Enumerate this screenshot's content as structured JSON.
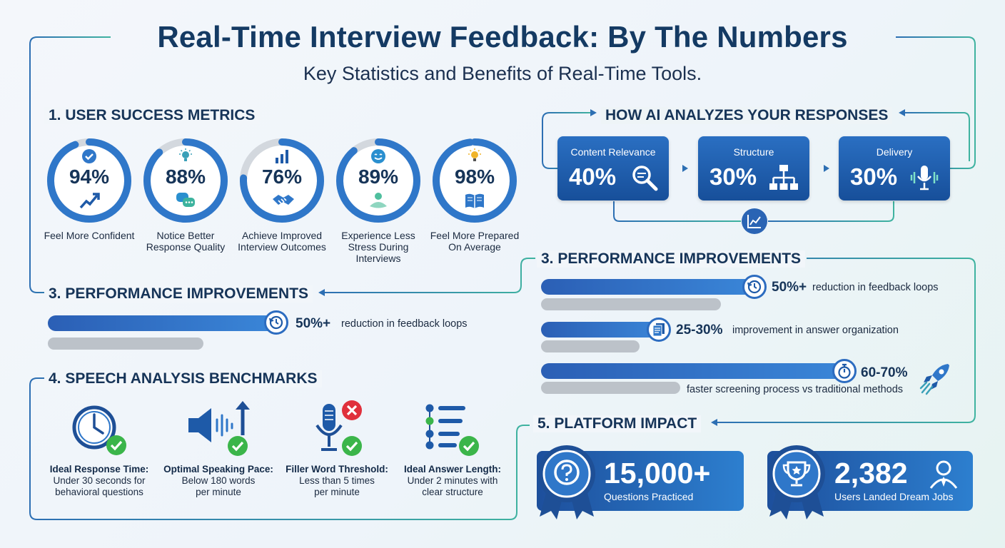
{
  "header": {
    "title": "Real-Time Interview Feedback: By The Numbers",
    "subtitle": "Key Statistics and Benefits of Real-Time Tools."
  },
  "user_success": {
    "heading": "1. USER SUCCESS METRICS",
    "metrics": [
      {
        "value": "94%",
        "fraction": 0.94,
        "label": "Feel More Confident",
        "icon_top": "check-circle-icon",
        "icon_bottom": "trend-up-icon"
      },
      {
        "value": "88%",
        "fraction": 0.88,
        "label": "Notice Better Response Quality",
        "icon_top": "lightbulb-icon",
        "icon_bottom": "chat-bubbles-icon"
      },
      {
        "value": "76%",
        "fraction": 0.76,
        "label": "Achieve Improved Interview Outcomes",
        "icon_top": "bar-chart-icon",
        "icon_bottom": "handshake-icon"
      },
      {
        "value": "89%",
        "fraction": 0.89,
        "label": "Experience Less Stress During Interviews",
        "icon_top": "smiley-icon",
        "icon_bottom": "calm-person-icon"
      },
      {
        "value": "98%",
        "fraction": 0.98,
        "label": "Feel More Prepared On Average",
        "icon_top": "lightbulb-icon",
        "icon_bottom": "open-book-icon"
      }
    ]
  },
  "ai_analysis": {
    "heading": "HOW AI ANALYZES YOUR RESPONSES",
    "boxes": [
      {
        "label": "Content Relevance",
        "value": "40%",
        "icon": "magnifier-icon"
      },
      {
        "label": "Structure",
        "value": "30%",
        "icon": "hierarchy-icon"
      },
      {
        "label": "Delivery",
        "value": "30%",
        "icon": "microphone-icon"
      }
    ],
    "hub_icon": "line-chart-icon"
  },
  "performance_left": {
    "heading": "3. PERFORMANCE IMPROVEMENTS",
    "items": [
      {
        "stat": "50%+",
        "desc": "reduction in feedback loops",
        "icon": "clock-refresh-icon"
      }
    ]
  },
  "performance_right": {
    "heading": "3. PERFORMANCE IMPROVEMENTS",
    "items": [
      {
        "stat": "50%+",
        "desc": "reduction in feedback loops",
        "icon": "clock-refresh-icon"
      },
      {
        "stat": "25-30%",
        "desc": "improvement in answer organization",
        "icon": "documents-icon"
      },
      {
        "stat": "60-70%",
        "desc": "faster screening process vs traditional methods",
        "icon": "stopwatch-icon",
        "extra_icon": "rocket-icon"
      }
    ]
  },
  "speech": {
    "heading": "4. SPEECH ANALYSIS BENCHMARKS",
    "items": [
      {
        "title": "Ideal Response Time:",
        "line1": "Under 30 seconds for",
        "line2": "behavioral questions",
        "icon": "clock-icon",
        "badge": "check-badge-icon"
      },
      {
        "title": "Optimal Speaking Pace:",
        "line1": "Below 180 words",
        "line2": "per minute",
        "icon": "speaker-icon",
        "badge": "check-badge-icon"
      },
      {
        "title": "Filler Word Threshold:",
        "line1": "Less than 5 times",
        "line2": "per minute",
        "icon": "microphone-icon",
        "badge": "check-badge-icon"
      },
      {
        "title": "Ideal Answer Length:",
        "line1": "Under 2 minutes with",
        "line2": "clear structure",
        "icon": "list-icon",
        "badge": "check-badge-icon"
      }
    ]
  },
  "platform": {
    "heading": "5. PLATFORM IMPACT",
    "items": [
      {
        "value": "15,000+",
        "caption": "Questions Practiced",
        "icon": "question-badge-icon"
      },
      {
        "value": "2,382",
        "caption": "Users Landed Dream Jobs",
        "icon": "trophy-badge-icon",
        "extra_icon": "user-icon"
      }
    ]
  },
  "colors": {
    "navy": "#143a63",
    "blue": "#2c6cc0",
    "teal": "#3aa0b8",
    "green": "#3bb54a",
    "red": "#e0303c",
    "gray": "#bcc2c9"
  }
}
